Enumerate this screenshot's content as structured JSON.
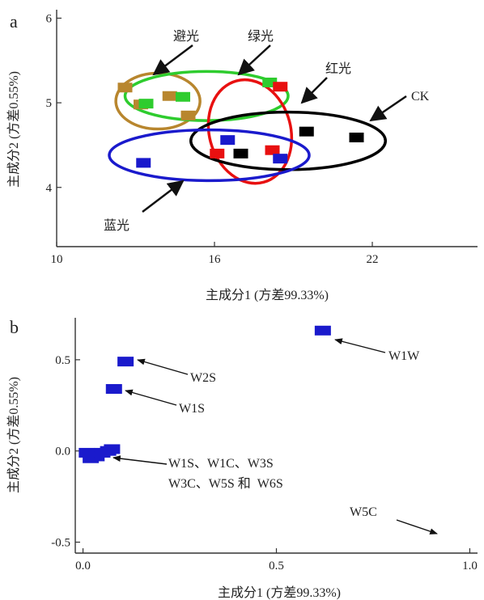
{
  "chart_data": [
    {
      "type": "scatter",
      "panel": "a",
      "xlabel": "主成分1 (方差99.33%)",
      "ylabel": "主成分2 (方差0.55%)",
      "xlim": [
        10,
        26
      ],
      "ylim": [
        3.3,
        6.1
      ],
      "xticks": [
        10,
        16,
        22
      ],
      "yticks": [
        4,
        5,
        6
      ],
      "series": [
        {
          "name": "避光",
          "color": "#b8862e",
          "points": [
            [
              12.6,
              5.18
            ],
            [
              13.2,
              4.98
            ],
            [
              14.3,
              5.08
            ],
            [
              15.0,
              4.85
            ]
          ],
          "ellipse": {
            "cx": 13.85,
            "cy": 5.02,
            "rx": 1.6,
            "ry": 0.33,
            "angle": 0
          }
        },
        {
          "name": "绿光",
          "color": "#2ecc2e",
          "points": [
            [
              13.4,
              4.99
            ],
            [
              14.8,
              5.07
            ],
            [
              18.1,
              5.24
            ]
          ],
          "ellipse": {
            "cx": 15.7,
            "cy": 5.08,
            "rx": 3.1,
            "ry": 0.29,
            "angle": 0
          }
        },
        {
          "name": "红光",
          "color": "#e81010",
          "points": [
            [
              16.1,
              4.4
            ],
            [
              18.2,
              4.44
            ],
            [
              18.5,
              5.19
            ]
          ],
          "ellipse": {
            "cx": 17.35,
            "cy": 4.66,
            "rx": 1.55,
            "ry": 0.62,
            "angle": -15
          }
        },
        {
          "name": "CK",
          "color": "#000000",
          "points": [
            [
              17.0,
              4.4
            ],
            [
              19.5,
              4.66
            ],
            [
              21.4,
              4.59
            ]
          ],
          "ellipse": {
            "cx": 18.8,
            "cy": 4.55,
            "rx": 3.7,
            "ry": 0.34,
            "angle": 0
          }
        },
        {
          "name": "蓝光",
          "color": "#1a1acc",
          "points": [
            [
              13.3,
              4.29
            ],
            [
              16.5,
              4.56
            ],
            [
              18.5,
              4.34
            ]
          ],
          "ellipse": {
            "cx": 15.8,
            "cy": 4.38,
            "rx": 3.8,
            "ry": 0.3,
            "angle": 0
          }
        }
      ],
      "annotations": [
        {
          "text": "避光",
          "series": "避光"
        },
        {
          "text": "绿光",
          "series": "绿光"
        },
        {
          "text": "红光",
          "series": "红光"
        },
        {
          "text": "CK",
          "series": "CK"
        },
        {
          "text": "蓝光",
          "series": "蓝光"
        }
      ]
    },
    {
      "type": "scatter",
      "panel": "b",
      "xlabel": "主成分1 (方差99.33%)",
      "ylabel": "主成分2 (方差0.55%)",
      "xlim": [
        -0.02,
        1.02
      ],
      "ylim": [
        -0.56,
        0.73
      ],
      "xticks": [
        0.0,
        0.5,
        1.0
      ],
      "yticks": [
        -0.5,
        0.0,
        0.5
      ],
      "xticklabels": [
        "0.0",
        "0.5",
        "1.0"
      ],
      "yticklabels": [
        "-0.5",
        "0.0",
        "0.5"
      ],
      "series": [
        {
          "name": "",
          "color": "#1a1acc",
          "points": [
            [
              0.62,
              0.66
            ],
            [
              0.11,
              0.49
            ],
            [
              0.08,
              0.34
            ],
            [
              0.01,
              -0.01
            ],
            [
              0.02,
              -0.04
            ],
            [
              0.035,
              -0.03
            ],
            [
              0.05,
              -0.01
            ],
            [
              0.065,
              0.0
            ],
            [
              0.075,
              0.01
            ]
          ]
        }
      ],
      "annotations": [
        {
          "text": "W1W",
          "point": [
            0.62,
            0.66
          ]
        },
        {
          "text": "W2S",
          "point": [
            0.11,
            0.49
          ]
        },
        {
          "text": "W1S",
          "point": [
            0.08,
            0.34
          ]
        },
        {
          "text": "W1S、W1C、W3S",
          "point": [
            0.08,
            -0.05
          ]
        },
        {
          "text": "W3C、W5S 和  W6S",
          "point": null
        },
        {
          "text": "W5C",
          "point": [
            0.95,
            -0.49
          ]
        }
      ]
    }
  ],
  "panels": {
    "a": "a",
    "b": "b"
  }
}
